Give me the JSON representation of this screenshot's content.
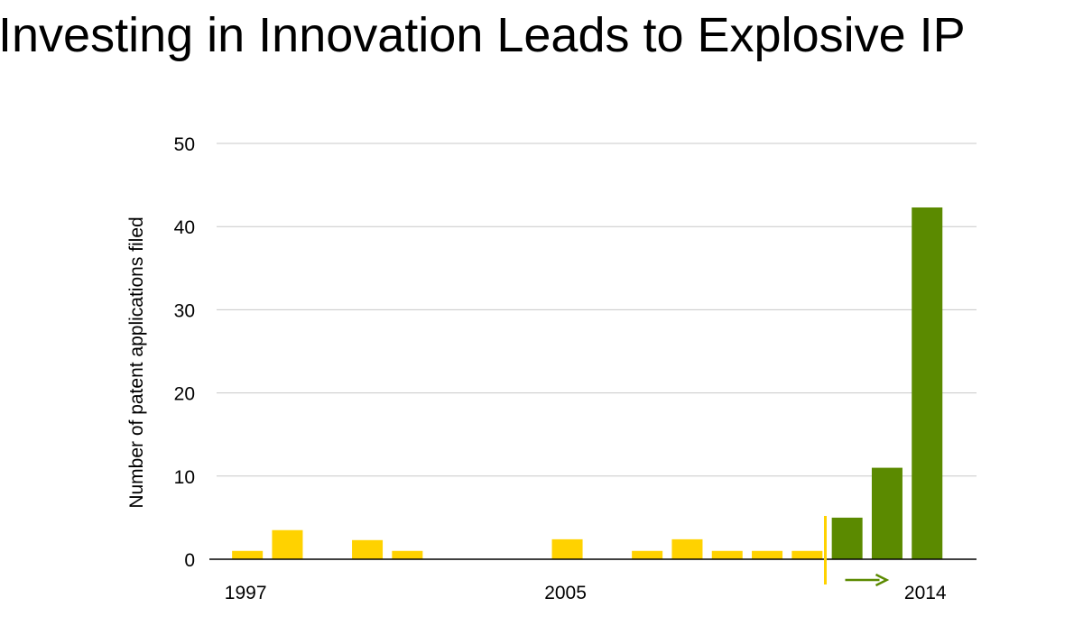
{
  "chart_data": {
    "type": "bar",
    "title": "Investing in Innovation Leads to Explosive IP",
    "ylabel": "Number of patent applications filed",
    "xlabel": "",
    "ylim": [
      0,
      50
    ],
    "yticks": [
      0,
      10,
      20,
      30,
      40,
      50
    ],
    "categories": [
      "1997",
      "1998",
      "1999",
      "2000",
      "2001",
      "2002",
      "2003",
      "2004",
      "2005",
      "2006",
      "2007",
      "2008",
      "2009",
      "2010",
      "2011",
      "2012",
      "2013",
      "2014"
    ],
    "x_tick_labels": [
      {
        "category": "1997",
        "label": "1997"
      },
      {
        "category": "2005",
        "label": "2005"
      },
      {
        "category": "2014",
        "label": "2014"
      }
    ],
    "values": [
      1,
      3.5,
      0,
      2.3,
      1,
      0,
      0,
      0,
      2.4,
      0,
      1,
      2.4,
      1,
      1,
      1,
      5,
      11,
      42.3
    ],
    "colors": {
      "before": "#FFD200",
      "after": "#5B8A00",
      "grid": "#C8C8C8",
      "axis": "#000000",
      "divider": "#FFD200",
      "arrow": "#5B8A00"
    },
    "split_after_category": "2011",
    "grid": true
  }
}
